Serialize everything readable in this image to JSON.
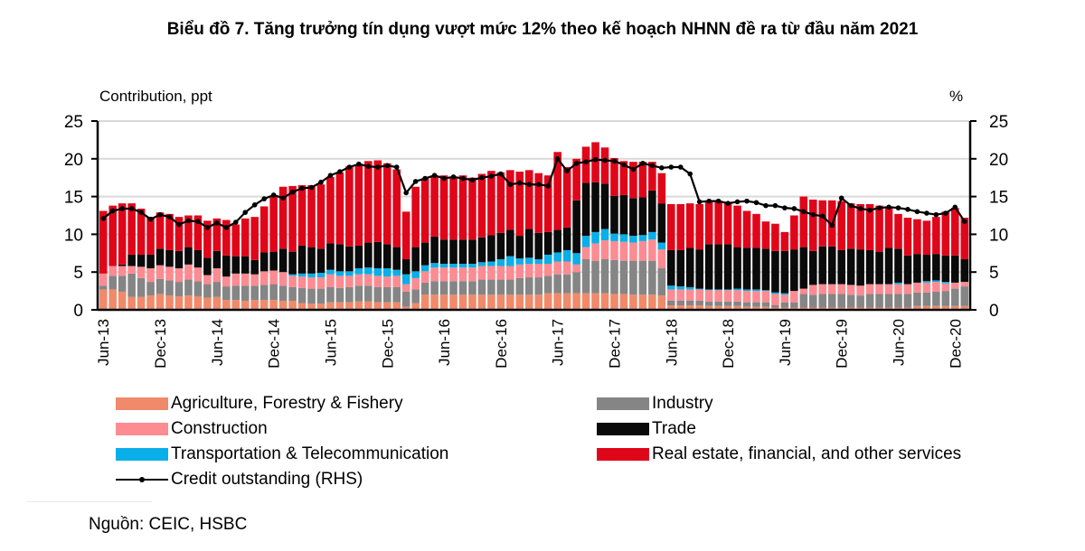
{
  "chart_data": {
    "type": "bar",
    "stacked": true,
    "title": "Biểu đồ 7. Tăng trưởng tín dụng vượt mức 12% theo kế hoạch NHNN đề ra từ đầu năm 2021",
    "ylabel": "Contribution, ppt",
    "y2label": "%",
    "ylim": [
      0,
      25
    ],
    "y2lim": [
      0,
      25
    ],
    "yticks": [
      0,
      5,
      10,
      15,
      20,
      25
    ],
    "y2ticks": [
      0,
      5,
      10,
      15,
      20,
      25
    ],
    "grid": true,
    "xtick_labels": [
      "Jun-13",
      "Dec-13",
      "Jun-14",
      "Dec-14",
      "Jun-15",
      "Dec-15",
      "Jun-16",
      "Dec-16",
      "Jun-17",
      "Dec-17",
      "Jun-18",
      "Dec-18",
      "Jun-19",
      "Dec-19",
      "Jun-20",
      "Dec-20"
    ],
    "xtick_every": 6,
    "start_month": "Jun-13",
    "n_periods": 92,
    "series": [
      {
        "name": "Agriculture, Forestry & Fishery",
        "color": "#f08a6a",
        "values": [
          2.7,
          2.7,
          2.4,
          1.7,
          1.7,
          1.9,
          2.1,
          1.9,
          1.8,
          1.9,
          1.8,
          1.6,
          1.7,
          1.3,
          1.3,
          1.2,
          1.3,
          1.3,
          1.3,
          1.2,
          1.2,
          0.9,
          0.8,
          0.8,
          1.0,
          1.0,
          1.0,
          1.1,
          1.1,
          1.0,
          1.0,
          1.0,
          0.4,
          0.9,
          2.0,
          2.0,
          2.0,
          2.0,
          2.0,
          2.0,
          2.0,
          2.0,
          2.0,
          2.0,
          2.0,
          2.0,
          2.0,
          2.2,
          2.2,
          2.2,
          2.2,
          2.2,
          2.2,
          2.2,
          2.1,
          2.1,
          2.0,
          2.0,
          2.0,
          1.9,
          0.6,
          0.6,
          0.6,
          0.6,
          0.5,
          0.5,
          0.5,
          0.5,
          0.4,
          0.4,
          0.4,
          0.3,
          0.3,
          0.3,
          0.3,
          0.3,
          0.3,
          0.3,
          0.3,
          0.3,
          0.3,
          0.3,
          0.3,
          0.3,
          0.3,
          0.3,
          0.5,
          0.5,
          0.5,
          0.5,
          0.5,
          0.5
        ]
      },
      {
        "name": "Industry",
        "color": "#858585",
        "values": [
          0.5,
          1.8,
          2.1,
          3.1,
          2.5,
          1.8,
          2.0,
          2.0,
          1.9,
          2.1,
          2.0,
          1.8,
          2.0,
          1.8,
          1.9,
          2.0,
          1.9,
          2.0,
          2.1,
          2.0,
          1.8,
          2.0,
          2.0,
          2.0,
          2.0,
          1.9,
          2.0,
          2.1,
          2.1,
          2.0,
          2.0,
          2.0,
          2.0,
          1.8,
          1.6,
          1.8,
          1.8,
          1.8,
          1.8,
          1.8,
          2.0,
          2.0,
          2.0,
          2.0,
          2.2,
          2.3,
          2.3,
          2.3,
          2.5,
          2.5,
          2.8,
          4.5,
          4.3,
          4.5,
          4.5,
          4.4,
          4.5,
          4.5,
          4.5,
          3.6,
          0.6,
          0.6,
          0.6,
          0.6,
          0.6,
          0.6,
          0.6,
          0.6,
          0.6,
          0.6,
          0.6,
          0.3,
          0.7,
          0.7,
          1.8,
          1.7,
          1.8,
          1.8,
          1.8,
          1.7,
          1.6,
          1.8,
          1.8,
          1.8,
          1.8,
          1.8,
          1.8,
          1.8,
          1.9,
          2.0,
          2.3,
          2.6
        ]
      },
      {
        "name": "Construction",
        "color": "#fc8b92",
        "values": [
          1.6,
          1.3,
          1.3,
          1.0,
          1.5,
          1.8,
          1.8,
          1.8,
          1.8,
          2.0,
          1.8,
          1.2,
          1.8,
          1.3,
          1.6,
          1.6,
          1.5,
          1.8,
          1.8,
          1.8,
          1.5,
          1.5,
          1.5,
          1.5,
          1.7,
          1.6,
          1.5,
          1.5,
          1.5,
          1.5,
          1.4,
          1.5,
          1.0,
          1.5,
          1.5,
          1.8,
          1.8,
          1.8,
          1.8,
          1.8,
          1.8,
          1.8,
          1.8,
          1.8,
          1.8,
          1.8,
          1.8,
          1.6,
          1.7,
          1.7,
          1.0,
          1.6,
          2.3,
          2.5,
          2.5,
          2.5,
          2.4,
          2.6,
          2.8,
          2.5,
          1.5,
          1.5,
          1.5,
          1.5,
          1.5,
          1.5,
          1.5,
          1.5,
          1.5,
          1.5,
          1.5,
          1.5,
          1.0,
          1.5,
          0.7,
          1.3,
          1.3,
          1.3,
          1.3,
          1.3,
          1.3,
          1.3,
          1.3,
          1.3,
          1.3,
          1.3,
          1.3,
          1.3,
          1.3,
          1.0,
          0.8,
          0.6
        ]
      },
      {
        "name": "Transportation & Telecommunication",
        "color": "#0aaee8",
        "values": [
          0,
          0,
          0,
          0,
          0,
          0,
          0,
          0,
          0,
          0,
          0,
          0,
          0,
          0,
          0,
          0,
          0,
          0,
          0,
          0,
          0.2,
          0.4,
          0.5,
          0.6,
          0.6,
          0.6,
          0.6,
          0.8,
          0.9,
          1.0,
          1.1,
          0.8,
          1.3,
          0.9,
          0.8,
          0.6,
          0.5,
          0.5,
          0.5,
          0.5,
          0.5,
          0.6,
          0.9,
          1.3,
          0.8,
          0.8,
          0.6,
          1.2,
          1.2,
          1.5,
          1.5,
          1.5,
          1.5,
          1.5,
          1.0,
          1.0,
          0.9,
          0.8,
          1.0,
          0.9,
          0.5,
          0.4,
          0.3,
          0.1,
          0.1,
          0.1,
          0.1,
          0.2,
          0.2,
          0.2,
          0.1,
          0.2,
          0.2,
          0,
          0,
          0,
          0,
          0,
          0,
          0,
          0,
          0,
          0,
          0,
          0.2,
          0,
          0,
          0.2,
          0.2,
          0.2,
          0,
          0
        ]
      },
      {
        "name": "Trade",
        "color": "#0a0a0a",
        "values": [
          0,
          0,
          0.2,
          1.5,
          1.6,
          1.8,
          2.2,
          2.2,
          2.3,
          2.3,
          2.3,
          2.3,
          2.3,
          2.8,
          2.3,
          2.3,
          1.9,
          2.5,
          2.5,
          3.1,
          3.0,
          3.7,
          3.5,
          3.2,
          3.5,
          3.6,
          3.3,
          3.0,
          3.3,
          3.5,
          3.2,
          3.0,
          2.0,
          3.2,
          3.0,
          3.5,
          3.2,
          3.2,
          3.2,
          3.2,
          3.3,
          3.5,
          3.5,
          3.5,
          3.0,
          3.8,
          3.5,
          3.0,
          3.0,
          3.0,
          7.0,
          7.0,
          6.6,
          6.0,
          5.0,
          5.2,
          5.0,
          5.0,
          5.5,
          5.2,
          4.7,
          4.8,
          5.2,
          5.2,
          6.0,
          6.0,
          6.0,
          5.5,
          5.5,
          5.5,
          5.5,
          5.5,
          5.6,
          5.5,
          5.5,
          4.5,
          5.0,
          5.0,
          4.5,
          4.8,
          4.8,
          4.5,
          4.3,
          4.8,
          4.5,
          3.8,
          3.8,
          3.5,
          3.5,
          3.5,
          3.6,
          3.0
        ]
      },
      {
        "name": "Real estate, financial, and other services",
        "color": "#e0061a",
        "values": [
          8.3,
          8.0,
          8.1,
          6.8,
          6.1,
          5.0,
          4.8,
          4.8,
          4.5,
          4.2,
          4.6,
          4.9,
          4.3,
          4.7,
          4.2,
          5.0,
          5.7,
          6.1,
          7.3,
          8.2,
          8.7,
          8.0,
          8.2,
          8.5,
          8.8,
          9.5,
          10.6,
          10.7,
          10.8,
          10.8,
          10.7,
          10.3,
          6.3,
          8.0,
          8.5,
          8.0,
          8.5,
          8.2,
          8.5,
          8.2,
          8.4,
          8.5,
          8.0,
          7.9,
          8.5,
          7.8,
          7.9,
          7.5,
          10.3,
          8.0,
          5.5,
          4.8,
          5.3,
          4.8,
          5.0,
          4.5,
          4.8,
          4.7,
          3.8,
          4.0,
          6.1,
          6.1,
          5.9,
          6.0,
          5.6,
          5.6,
          5.6,
          5.5,
          4.9,
          4.5,
          3.6,
          3.6,
          2.5,
          4.5,
          6.7,
          6.8,
          6.1,
          6.1,
          6.5,
          6.0,
          6.0,
          6.1,
          6.1,
          5.5,
          4.6,
          5.0,
          4.6,
          4.5,
          4.9,
          5.8,
          6.3,
          5.5
        ]
      },
      {
        "name": "Credit outstanding (RHS)",
        "type": "line",
        "axis": "right",
        "color": "#000000",
        "values": [
          12.1,
          13.1,
          13.4,
          13.4,
          12.9,
          12.0,
          12.6,
          12.3,
          11.3,
          11.8,
          11.7,
          10.9,
          11.5,
          10.9,
          11.6,
          12.9,
          13.9,
          14.7,
          15.2,
          14.8,
          15.6,
          16.1,
          16.2,
          16.9,
          17.8,
          18.3,
          18.9,
          19.3,
          19.0,
          18.9,
          19.1,
          18.9,
          15.5,
          17.0,
          17.4,
          17.8,
          17.4,
          17.6,
          17.4,
          17.2,
          17.5,
          17.7,
          18.0,
          16.6,
          16.8,
          16.6,
          16.6,
          16.4,
          20.0,
          18.4,
          19.4,
          19.6,
          19.9,
          19.8,
          19.7,
          19.2,
          18.6,
          19.4,
          19.1,
          18.8,
          18.9,
          18.9,
          18.0,
          14.3,
          14.4,
          14.4,
          14.1,
          14.3,
          14.4,
          14.2,
          13.8,
          13.8,
          13.5,
          13.4,
          13.0,
          12.6,
          12.4,
          11.2,
          14.8,
          13.8,
          13.4,
          13.2,
          13.5,
          13.6,
          13.5,
          13.3,
          13.0,
          12.8,
          12.6,
          12.8,
          13.6,
          11.7
        ]
      }
    ]
  },
  "legend": {
    "items": [
      {
        "label": "Agriculture, Forestry & Fishery",
        "color": "#f08a6a"
      },
      {
        "label": "Industry",
        "color": "#858585"
      },
      {
        "label": "Construction",
        "color": "#fc8b92"
      },
      {
        "label": "Trade",
        "color": "#0a0a0a"
      },
      {
        "label": "Transportation & Telecommunication",
        "color": "#0aaee8"
      },
      {
        "label": "Real estate, financial, and other services",
        "color": "#e0061a"
      },
      {
        "label": "Credit outstanding (RHS)",
        "color": "#000000"
      }
    ]
  },
  "source": "Nguồn: CEIC, HSBC"
}
